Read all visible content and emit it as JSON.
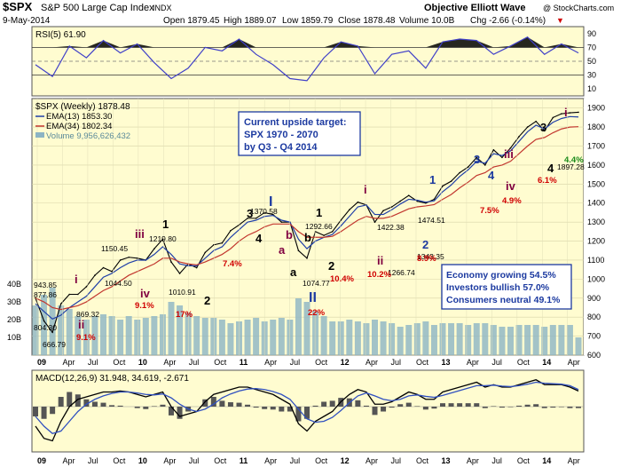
{
  "header": {
    "ticker": "$SPX",
    "name": "S&P 500 Large Cap Index",
    "exchange": "INDX",
    "date": "9-May-2014",
    "open": "Open 1879.45",
    "high": "High 1889.07",
    "low": "Low 1859.79",
    "close": "Close 1878.48",
    "volume": "Volume 10.0B",
    "change": "Chg -2.66 (-0.14%)",
    "change_arrow": "▼",
    "source": "Objective Elliott Wave",
    "source_credit": "@ StockCharts.com"
  },
  "colors": {
    "panel_bg": "#fffcd0",
    "price_line": "#000000",
    "ema13": "#1f3fa8",
    "ema34": "#c2372f",
    "volume": "#8cb4c4",
    "rsi_line": "#4040c8",
    "red_note": "#d00000",
    "green_note": "#1a8a1a",
    "wave_blue": "#1c3aa0",
    "wave_purple": "#800040"
  },
  "chart_data": [
    {
      "type": "line",
      "panel": "RSI",
      "title": "RSI(5) 61.90",
      "ylim": [
        0,
        100
      ],
      "y_ticks": [
        10,
        30,
        50,
        70,
        90
      ],
      "reference_lines": [
        30,
        50,
        70
      ],
      "x": [
        "2009-01",
        "2009-03",
        "2009-05",
        "2009-07",
        "2009-09",
        "2009-11",
        "2010-01",
        "2010-03",
        "2010-05",
        "2010-07",
        "2010-09",
        "2010-11",
        "2011-01",
        "2011-03",
        "2011-05",
        "2011-07",
        "2011-09",
        "2011-11",
        "2012-01",
        "2012-03",
        "2012-05",
        "2012-07",
        "2012-09",
        "2012-11",
        "2013-01",
        "2013-03",
        "2013-05",
        "2013-07",
        "2013-09",
        "2013-11",
        "2014-01",
        "2014-03",
        "2014-05"
      ],
      "values": [
        45,
        28,
        72,
        55,
        80,
        62,
        75,
        48,
        25,
        40,
        70,
        65,
        82,
        60,
        45,
        25,
        22,
        55,
        78,
        72,
        32,
        60,
        65,
        40,
        78,
        82,
        80,
        60,
        72,
        85,
        60,
        75,
        62
      ]
    },
    {
      "type": "line",
      "panel": "Price",
      "title": "$SPX (Weekly) 1878.48",
      "legend": [
        "EMA(13) 1853.30",
        "EMA(34) 1802.34",
        "Volume 9,956,626,432"
      ],
      "ylim": [
        600,
        1950
      ],
      "y_ticks": [
        600,
        700,
        800,
        900,
        1000,
        1100,
        1200,
        1300,
        1400,
        1500,
        1600,
        1700,
        1800,
        1900
      ],
      "x_ticks": [
        "09",
        "Apr",
        "Jul",
        "Oct",
        "10",
        "Apr",
        "Jul",
        "Oct",
        "11",
        "Apr",
        "Jul",
        "Oct",
        "12",
        "Apr",
        "Jul",
        "Oct",
        "13",
        "Apr",
        "Jul",
        "Oct",
        "14",
        "Apr"
      ],
      "x": [
        "2009-01",
        "2009-02",
        "2009-03",
        "2009-04",
        "2009-05",
        "2009-06",
        "2009-07",
        "2009-08",
        "2009-09",
        "2009-10",
        "2009-11",
        "2009-12",
        "2010-01",
        "2010-02",
        "2010-03",
        "2010-04",
        "2010-05",
        "2010-06",
        "2010-07",
        "2010-08",
        "2010-09",
        "2010-10",
        "2010-11",
        "2010-12",
        "2011-01",
        "2011-02",
        "2011-03",
        "2011-04",
        "2011-05",
        "2011-06",
        "2011-07",
        "2011-08",
        "2011-09",
        "2011-10",
        "2011-11",
        "2011-12",
        "2012-01",
        "2012-02",
        "2012-03",
        "2012-04",
        "2012-05",
        "2012-06",
        "2012-07",
        "2012-08",
        "2012-09",
        "2012-10",
        "2012-11",
        "2012-12",
        "2013-01",
        "2013-02",
        "2013-03",
        "2013-04",
        "2013-05",
        "2013-06",
        "2013-07",
        "2013-08",
        "2013-09",
        "2013-10",
        "2013-11",
        "2013-12",
        "2014-01",
        "2014-02",
        "2014-03",
        "2014-04",
        "2014-05"
      ],
      "series": [
        {
          "name": "$SPX",
          "values": [
            900,
            780,
            720,
            870,
            920,
            920,
            960,
            1020,
            1060,
            1040,
            1100,
            1115,
            1110,
            1100,
            1160,
            1210,
            1090,
            1030,
            1080,
            1060,
            1140,
            1180,
            1190,
            1255,
            1285,
            1320,
            1320,
            1350,
            1340,
            1300,
            1300,
            1150,
            1110,
            1250,
            1230,
            1250,
            1310,
            1365,
            1405,
            1390,
            1300,
            1360,
            1380,
            1410,
            1440,
            1410,
            1400,
            1420,
            1490,
            1515,
            1560,
            1590,
            1640,
            1600,
            1680,
            1640,
            1690,
            1750,
            1800,
            1830,
            1780,
            1850,
            1870,
            1875,
            1878
          ]
        },
        {
          "name": "EMA(13) 1853.30",
          "values": [
            870,
            830,
            790,
            810,
            850,
            880,
            910,
            960,
            1010,
            1030,
            1060,
            1085,
            1100,
            1100,
            1130,
            1170,
            1130,
            1080,
            1070,
            1070,
            1110,
            1150,
            1170,
            1220,
            1260,
            1300,
            1310,
            1330,
            1335,
            1310,
            1300,
            1210,
            1160,
            1200,
            1220,
            1235,
            1280,
            1330,
            1380,
            1390,
            1340,
            1340,
            1365,
            1395,
            1420,
            1415,
            1405,
            1412,
            1460,
            1495,
            1540,
            1575,
            1620,
            1610,
            1660,
            1650,
            1675,
            1725,
            1775,
            1810,
            1790,
            1825,
            1845,
            1855,
            1853
          ]
        },
        {
          "name": "EMA(34) 1802.34",
          "values": [
            900,
            880,
            850,
            840,
            850,
            860,
            880,
            910,
            940,
            960,
            990,
            1020,
            1040,
            1060,
            1080,
            1110,
            1110,
            1090,
            1080,
            1075,
            1090,
            1110,
            1130,
            1160,
            1200,
            1230,
            1250,
            1275,
            1290,
            1290,
            1290,
            1250,
            1220,
            1220,
            1220,
            1225,
            1250,
            1280,
            1310,
            1330,
            1320,
            1320,
            1330,
            1350,
            1370,
            1380,
            1385,
            1392,
            1420,
            1445,
            1480,
            1510,
            1545,
            1560,
            1590,
            1600,
            1620,
            1660,
            1700,
            1735,
            1745,
            1770,
            1790,
            1800,
            1802
          ]
        }
      ],
      "volume_axis": [
        "10B",
        "20B",
        "30B",
        "40B"
      ],
      "volume_values_B": [
        28,
        34,
        38,
        28,
        26,
        22,
        20,
        22,
        23,
        22,
        20,
        22,
        20,
        21,
        22,
        23,
        30,
        28,
        24,
        22,
        21,
        21,
        20,
        18,
        19,
        20,
        21,
        19,
        20,
        21,
        20,
        32,
        30,
        25,
        22,
        19,
        19,
        20,
        19,
        18,
        20,
        19,
        18,
        16,
        17,
        18,
        19,
        17,
        18,
        18,
        18,
        17,
        18,
        18,
        17,
        16,
        16,
        17,
        17,
        17,
        16,
        17,
        17,
        17,
        10
      ],
      "annotations": [
        {
          "text": "943.85",
          "color": "black"
        },
        {
          "text": "877.86",
          "color": "black"
        },
        {
          "text": "804.30",
          "color": "black"
        },
        {
          "text": "666.79",
          "color": "black"
        },
        {
          "text": "869.32",
          "color": "black"
        },
        {
          "text": "1150.45",
          "color": "black"
        },
        {
          "text": "1044.50",
          "color": "black"
        },
        {
          "text": "1219.80",
          "color": "black"
        },
        {
          "text": "1010.91",
          "color": "black"
        },
        {
          "text": "1370.58",
          "color": "black"
        },
        {
          "text": "1074.77",
          "color": "black"
        },
        {
          "text": "1292.66",
          "color": "black"
        },
        {
          "text": "1422.38",
          "color": "black"
        },
        {
          "text": "1266.74",
          "color": "black"
        },
        {
          "text": "1474.51",
          "color": "black"
        },
        {
          "text": "1343.35",
          "color": "black"
        },
        {
          "text": "1897.28",
          "color": "black"
        },
        {
          "text": "i",
          "color": "purple"
        },
        {
          "text": "ii",
          "color": "purple"
        },
        {
          "text": "iii",
          "color": "purple"
        },
        {
          "text": "iv",
          "color": "purple"
        },
        {
          "text": "1",
          "color": "black"
        },
        {
          "text": "2",
          "color": "black"
        },
        {
          "text": "3",
          "color": "black"
        },
        {
          "text": "4",
          "color": "black"
        },
        {
          "text": "a",
          "color": "black"
        },
        {
          "text": "a",
          "color": "purple"
        },
        {
          "text": "b",
          "color": "black"
        },
        {
          "text": "b",
          "color": "purple"
        },
        {
          "text": "1",
          "color": "black"
        },
        {
          "text": "2",
          "color": "black"
        },
        {
          "text": "I",
          "color": "blue"
        },
        {
          "text": "II",
          "color": "blue"
        },
        {
          "text": "i",
          "color": "purple"
        },
        {
          "text": "ii",
          "color": "purple"
        },
        {
          "text": "1",
          "color": "blue"
        },
        {
          "text": "2",
          "color": "blue"
        },
        {
          "text": "3",
          "color": "blue"
        },
        {
          "text": "4",
          "color": "blue"
        },
        {
          "text": "iii",
          "color": "purple"
        },
        {
          "text": "iv",
          "color": "purple"
        },
        {
          "text": "3",
          "color": "black"
        },
        {
          "text": "4",
          "color": "black"
        },
        {
          "text": "i",
          "color": "purple"
        },
        {
          "text": "9.1%",
          "color": "red"
        },
        {
          "text": "9.1%",
          "color": "red"
        },
        {
          "text": "17%",
          "color": "red"
        },
        {
          "text": "7.4%",
          "color": "red"
        },
        {
          "text": "22%",
          "color": "red"
        },
        {
          "text": "10.4%",
          "color": "red"
        },
        {
          "text": "10.2%",
          "color": "red"
        },
        {
          "text": "8.9%",
          "color": "red"
        },
        {
          "text": "7.5%",
          "color": "red"
        },
        {
          "text": "4.9%",
          "color": "red"
        },
        {
          "text": "6.1%",
          "color": "red"
        },
        {
          "text": "4.4%",
          "color": "green"
        }
      ],
      "target_box": [
        "Current upside target:",
        "SPX 1970 - 2070",
        "by Q3 - Q4 2014"
      ],
      "sentiment_box": [
        "Economy growing 54.5%",
        "Investors bullish 57.0%",
        "Consumers neutral 49.1%"
      ]
    },
    {
      "type": "line",
      "panel": "MACD",
      "title": "MACD(12,26,9) 31.948, 34.619, -2.671",
      "x_ticks": [
        "09",
        "Apr",
        "Jul",
        "Oct",
        "10",
        "Apr",
        "Jul",
        "Oct",
        "11",
        "Apr",
        "Jul",
        "Oct",
        "12",
        "Apr",
        "Jul",
        "Oct",
        "13",
        "Apr",
        "Jul",
        "Oct",
        "14",
        "Apr"
      ],
      "series": [
        {
          "name": "MACD",
          "values": [
            -40,
            -65,
            -70,
            -30,
            0,
            15,
            20,
            25,
            30,
            30,
            32,
            30,
            25,
            20,
            25,
            30,
            0,
            -20,
            -15,
            -10,
            10,
            25,
            30,
            35,
            40,
            40,
            35,
            30,
            25,
            15,
            5,
            -35,
            -50,
            -30,
            -20,
            -10,
            10,
            25,
            35,
            30,
            5,
            5,
            10,
            20,
            30,
            25,
            15,
            15,
            30,
            35,
            40,
            45,
            50,
            40,
            45,
            40,
            40,
            45,
            50,
            55,
            45,
            45,
            45,
            40,
            32
          ]
        },
        {
          "name": "Signal",
          "values": [
            -20,
            -40,
            -55,
            -50,
            -30,
            -10,
            5,
            15,
            22,
            27,
            30,
            30,
            28,
            25,
            24,
            26,
            18,
            5,
            -5,
            -10,
            -5,
            5,
            18,
            26,
            32,
            36,
            37,
            35,
            31,
            25,
            15,
            -5,
            -25,
            -32,
            -30,
            -22,
            -8,
            8,
            22,
            28,
            22,
            15,
            12,
            15,
            22,
            24,
            21,
            19,
            23,
            28,
            33,
            38,
            43,
            43,
            44,
            42,
            41,
            43,
            46,
            50,
            48,
            47,
            46,
            43,
            35
          ]
        }
      ]
    }
  ]
}
